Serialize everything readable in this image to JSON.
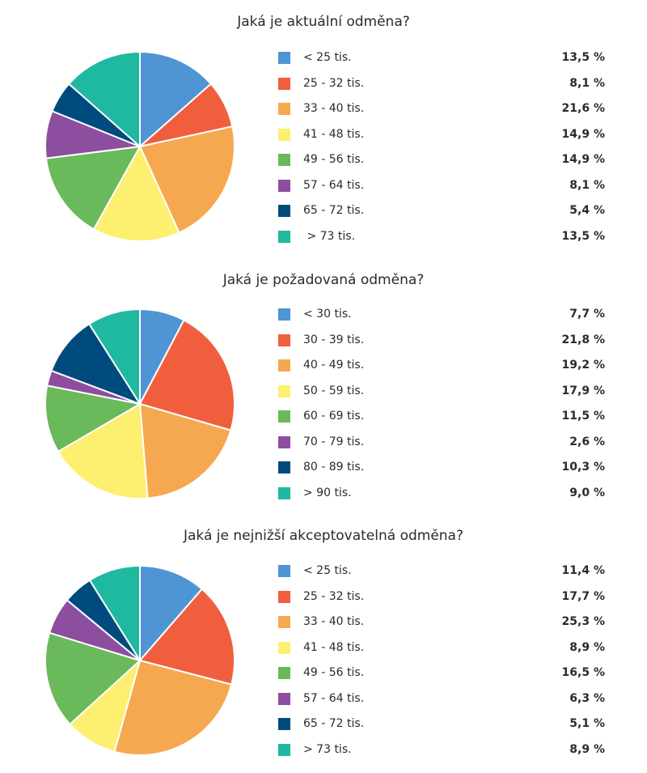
{
  "colors": [
    "#4f95d3",
    "#f15e3e",
    "#f6a850",
    "#fdef6f",
    "#6ab95a",
    "#8e4e9f",
    "#004b7d",
    "#1fb8a0"
  ],
  "chart_data": [
    {
      "type": "pie",
      "title": "Jaká je aktuální odměna?",
      "labels": [
        "< 25 tis.",
        "25 - 32 tis.",
        "33 - 40 tis.",
        "41 - 48 tis.",
        "49 - 56 tis.",
        "57 - 64 tis.",
        "65 - 72 tis.",
        " > 73 tis."
      ],
      "values": [
        13.5,
        8.1,
        21.6,
        14.9,
        14.9,
        8.1,
        5.4,
        13.5
      ],
      "value_labels": [
        "13,5 %",
        "8,1 %",
        "21,6 %",
        "14,9 %",
        "14,9 %",
        "8,1 %",
        "5,4 %",
        "13,5 %"
      ]
    },
    {
      "type": "pie",
      "title": "Jaká je požadovaná odměna?",
      "labels": [
        "< 30 tis.",
        "30 - 39 tis.",
        "40 - 49 tis.",
        "50 - 59 tis.",
        "60 - 69 tis.",
        "70 - 79 tis.",
        "80 - 89 tis.",
        "> 90 tis."
      ],
      "values": [
        7.7,
        21.8,
        19.2,
        17.9,
        11.5,
        2.6,
        10.3,
        9.0
      ],
      "value_labels": [
        "7,7 %",
        "21,8 %",
        "19,2 %",
        "17,9 %",
        "11,5 %",
        "2,6 %",
        "10,3 %",
        "9,0 %"
      ]
    },
    {
      "type": "pie",
      "title": "Jaká je nejnižší akceptovatelná odměna?",
      "labels": [
        "< 25 tis.",
        "25 - 32 tis.",
        "33 - 40 tis.",
        "41 - 48 tis.",
        "49 - 56 tis.",
        "57 - 64 tis.",
        "65 - 72 tis.",
        "> 73 tis."
      ],
      "values": [
        11.4,
        17.7,
        25.3,
        8.9,
        16.5,
        6.3,
        5.1,
        8.9
      ],
      "value_labels": [
        "11,4 %",
        "17,7 %",
        "25,3 %",
        "8,9 %",
        "16,5 %",
        "6,3 %",
        "5,1 %",
        "8,9 %"
      ]
    }
  ]
}
